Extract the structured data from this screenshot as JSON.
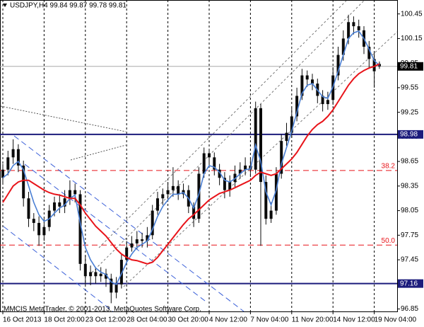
{
  "chart_data": {
    "type": "candlestick",
    "title": "USDJPY,H4  99.84 99.87 99.78 99.81",
    "footer": "MMCIS MetaTrader, © 2001-2013, MetaQuotes Software Corp.",
    "categories": [
      "16 Oct 2013",
      null,
      null,
      null,
      null,
      null,
      null,
      null,
      "18 Oct 20:00",
      null,
      null,
      null,
      null,
      null,
      null,
      null,
      "23 Oct 12:00",
      null,
      null,
      null,
      null,
      null,
      null,
      null,
      "28 Oct 04:00",
      null,
      null,
      null,
      null,
      null,
      null,
      null,
      "30 Oct 20:00",
      null,
      null,
      null,
      null,
      null,
      null,
      null,
      "4 Nov 12:00",
      null,
      null,
      null,
      null,
      null,
      null,
      null,
      "7 Nov 04:00",
      null,
      null,
      null,
      null,
      null,
      null,
      null,
      "11 Nov 20:00",
      null,
      null,
      null,
      null,
      null,
      null,
      null,
      "14 Nov 12:00",
      null,
      null,
      null,
      null,
      null,
      null,
      null,
      "19 Nov 04:00",
      null
    ],
    "open": [
      98.45,
      98.55,
      98.7,
      98.8,
      98.6,
      98.2,
      97.95,
      97.9,
      97.75,
      97.85,
      98.05,
      98.15,
      98.1,
      98.2,
      98.3,
      98.25,
      97.4,
      97.25,
      97.3,
      97.25,
      97.28,
      97.22,
      97.05,
      97.15,
      97.45,
      97.6,
      97.65,
      97.7,
      97.68,
      97.75,
      98.05,
      98.2,
      98.25,
      98.3,
      98.35,
      98.25,
      98.3,
      98.1,
      97.95,
      98.5,
      98.75,
      98.7,
      98.55,
      98.45,
      98.3,
      98.4,
      98.5,
      98.55,
      98.6,
      98.55,
      99.3,
      98.4,
      97.95,
      98.05,
      98.5,
      98.9,
      99.0,
      99.2,
      99.45,
      99.7,
      99.65,
      99.6,
      99.45,
      99.35,
      99.4,
      99.7,
      99.95,
      100.15,
      100.35,
      100.3,
      100.25,
      100.05,
      99.9,
      99.84
    ],
    "high": [
      98.62,
      98.78,
      98.92,
      98.86,
      98.66,
      98.28,
      98.02,
      97.98,
      97.95,
      98.12,
      98.22,
      98.25,
      98.3,
      98.42,
      98.38,
      98.3,
      97.5,
      97.38,
      97.36,
      97.36,
      97.34,
      97.28,
      97.24,
      97.52,
      97.68,
      97.74,
      97.8,
      97.78,
      97.85,
      98.12,
      98.28,
      98.32,
      98.4,
      98.58,
      98.42,
      98.38,
      98.36,
      98.15,
      98.58,
      98.82,
      98.8,
      98.76,
      98.62,
      98.52,
      98.48,
      98.6,
      98.64,
      98.7,
      98.68,
      99.38,
      99.35,
      98.48,
      98.15,
      98.58,
      98.98,
      99.12,
      99.3,
      99.55,
      99.78,
      99.76,
      99.72,
      99.66,
      99.52,
      99.5,
      99.8,
      100.05,
      100.25,
      100.44,
      100.42,
      100.38,
      100.3,
      100.12,
      99.98,
      99.87
    ],
    "low": [
      98.38,
      98.48,
      98.62,
      98.52,
      98.1,
      97.85,
      97.8,
      97.62,
      97.68,
      97.8,
      97.98,
      98.02,
      98.02,
      98.12,
      98.15,
      97.32,
      97.15,
      97.14,
      97.16,
      97.18,
      97.12,
      96.92,
      96.98,
      97.1,
      97.4,
      97.55,
      97.58,
      97.6,
      97.6,
      97.7,
      98.0,
      98.12,
      98.18,
      98.22,
      98.18,
      98.2,
      98.02,
      97.85,
      97.9,
      98.45,
      98.6,
      98.48,
      98.36,
      98.2,
      98.22,
      98.34,
      98.44,
      98.48,
      98.46,
      98.5,
      97.62,
      97.88,
      97.9,
      98.0,
      98.44,
      98.84,
      98.94,
      99.14,
      99.4,
      99.56,
      99.52,
      99.36,
      99.26,
      99.28,
      99.34,
      99.64,
      99.88,
      100.08,
      100.2,
      100.16,
      99.96,
      99.78,
      99.55,
      99.78
    ],
    "close": [
      98.55,
      98.7,
      98.8,
      98.6,
      98.2,
      97.95,
      97.9,
      97.75,
      97.85,
      98.05,
      98.15,
      98.1,
      98.2,
      98.3,
      98.25,
      97.4,
      97.25,
      97.3,
      97.25,
      97.28,
      97.22,
      97.05,
      97.15,
      97.45,
      97.6,
      97.65,
      97.7,
      97.68,
      97.75,
      98.05,
      98.2,
      98.25,
      98.3,
      98.35,
      98.25,
      98.3,
      98.1,
      97.95,
      98.5,
      98.75,
      98.7,
      98.55,
      98.45,
      98.3,
      98.4,
      98.5,
      98.55,
      98.6,
      98.55,
      99.3,
      98.4,
      97.95,
      98.05,
      98.5,
      98.9,
      99.0,
      99.2,
      99.45,
      99.7,
      99.65,
      99.6,
      99.45,
      99.35,
      99.4,
      99.7,
      99.95,
      100.15,
      100.35,
      100.3,
      100.25,
      100.05,
      99.9,
      99.75,
      99.81
    ],
    "candle_color": "#0b0b0b",
    "overlays": [
      {
        "color": "#4a7fd4",
        "values": [
          98.45,
          98.5,
          98.6,
          98.65,
          98.55,
          98.35,
          98.15,
          98.0,
          97.92,
          97.95,
          98.02,
          98.08,
          98.12,
          98.2,
          98.24,
          97.9,
          97.6,
          97.45,
          97.35,
          97.3,
          97.27,
          97.18,
          97.15,
          97.28,
          97.42,
          97.52,
          97.6,
          97.64,
          97.68,
          97.82,
          97.98,
          98.1,
          98.18,
          98.25,
          98.25,
          98.27,
          98.2,
          98.08,
          98.25,
          98.5,
          98.6,
          98.58,
          98.52,
          98.42,
          98.4,
          98.44,
          98.5,
          98.55,
          98.56,
          98.85,
          98.65,
          98.28,
          98.12,
          98.3,
          98.62,
          98.82,
          99.02,
          99.25,
          99.48,
          99.58,
          99.6,
          99.52,
          99.44,
          99.42,
          99.56,
          99.75,
          99.95,
          100.15,
          100.22,
          100.24,
          100.15,
          100.02,
          99.88,
          99.82
        ]
      },
      {
        "color": "#e8141a",
        "values": [
          98.15,
          98.25,
          98.35,
          98.4,
          98.42,
          98.42,
          98.38,
          98.34,
          98.3,
          98.27,
          98.25,
          98.24,
          98.22,
          98.2,
          98.2,
          98.12,
          98.02,
          97.94,
          97.86,
          97.8,
          97.74,
          97.66,
          97.58,
          97.52,
          97.48,
          97.45,
          97.44,
          97.42,
          97.4,
          97.42,
          97.48,
          97.56,
          97.64,
          97.72,
          97.8,
          97.88,
          97.95,
          98.0,
          98.06,
          98.12,
          98.18,
          98.22,
          98.26,
          98.28,
          98.3,
          98.33,
          98.36,
          98.39,
          98.42,
          98.48,
          98.52,
          98.5,
          98.48,
          98.5,
          98.56,
          98.62,
          98.68,
          98.76,
          98.86,
          98.96,
          99.04,
          99.1,
          99.14,
          99.2,
          99.28,
          99.38,
          99.48,
          99.58,
          99.66,
          99.72,
          99.76,
          99.79,
          99.81,
          99.84
        ]
      }
    ],
    "ylim": [
      96.82,
      100.62
    ],
    "yticks": [
      100.45,
      100.15,
      99.85,
      99.55,
      99.25,
      98.95,
      98.65,
      98.35,
      98.05,
      97.75,
      97.45,
      97.15,
      96.85
    ],
    "hlines": [
      {
        "value": 98.98,
        "color": "#1c1c7c"
      },
      {
        "value": 97.16,
        "color": "#1c1c7c"
      }
    ],
    "current_price": {
      "value": 99.81,
      "color": "#000000"
    },
    "fib_levels": [
      {
        "value": 98.54,
        "label": "38.2"
      },
      {
        "value": 97.63,
        "label": "50.0"
      }
    ],
    "fib_color": "#e8141a"
  }
}
